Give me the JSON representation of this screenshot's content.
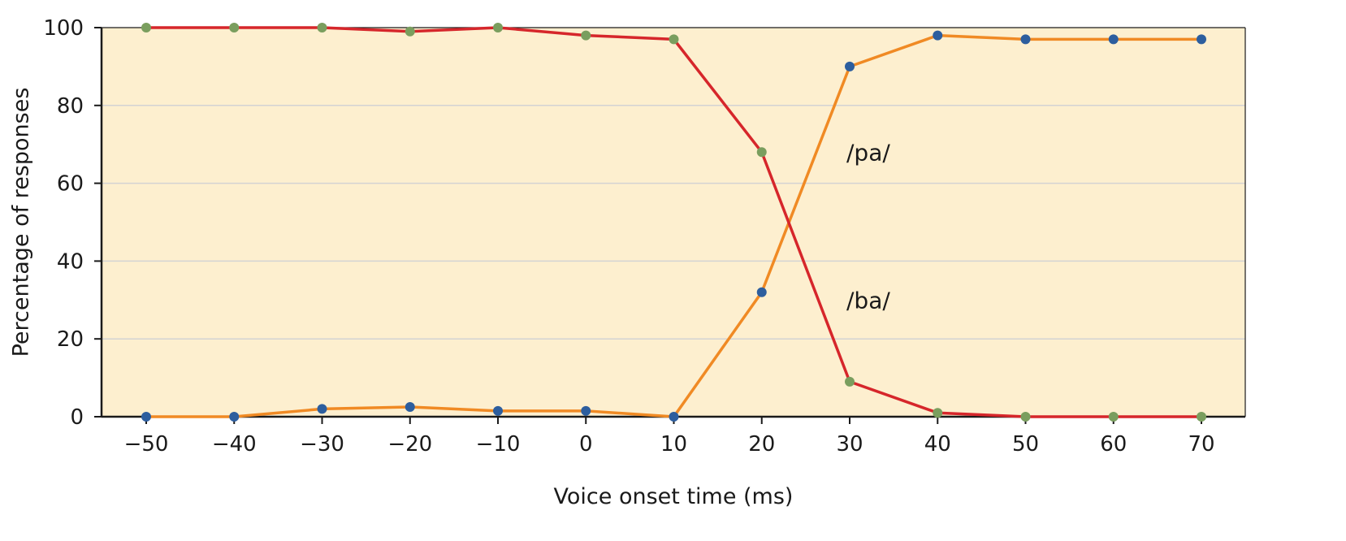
{
  "chart_data": {
    "type": "line",
    "title": "",
    "xlabel": "Voice onset time (ms)",
    "ylabel": "Percentage of responses",
    "x": [
      -50,
      -40,
      -30,
      -20,
      -10,
      0,
      10,
      20,
      30,
      40,
      50,
      60,
      70
    ],
    "x_tick_labels": [
      "−50",
      "−40",
      "−30",
      "−20",
      "−10",
      "0",
      "10",
      "20",
      "30",
      "40",
      "50",
      "60",
      "70"
    ],
    "y_ticks": [
      0,
      20,
      40,
      60,
      80,
      100
    ],
    "y_tick_labels": [
      "0",
      "20",
      "40",
      "60",
      "80",
      "100"
    ],
    "xlim": [
      -55,
      75
    ],
    "ylim": [
      0,
      100
    ],
    "grid": "horizontal",
    "series": [
      {
        "name": "/ba/",
        "values": [
          100,
          100,
          100,
          99,
          100,
          98,
          97,
          68,
          9,
          1,
          0,
          0,
          0
        ],
        "line_color": "#d6262b",
        "marker_color": "#7a9e5e"
      },
      {
        "name": "/pa/",
        "values": [
          0,
          0,
          2,
          2.5,
          1.5,
          1.5,
          0,
          32,
          90,
          98,
          97,
          97,
          97
        ],
        "line_color": "#f08a24",
        "marker_color": "#2d5e9e"
      }
    ],
    "annotations": [
      {
        "text": "/pa/",
        "x": 30,
        "y": 68
      },
      {
        "text": "/ba/",
        "x": 30,
        "y": 30
      }
    ],
    "colors": {
      "plot_background": "#fdefcf",
      "grid": "#d3d3d3",
      "axis": "#1a1a1a"
    }
  }
}
